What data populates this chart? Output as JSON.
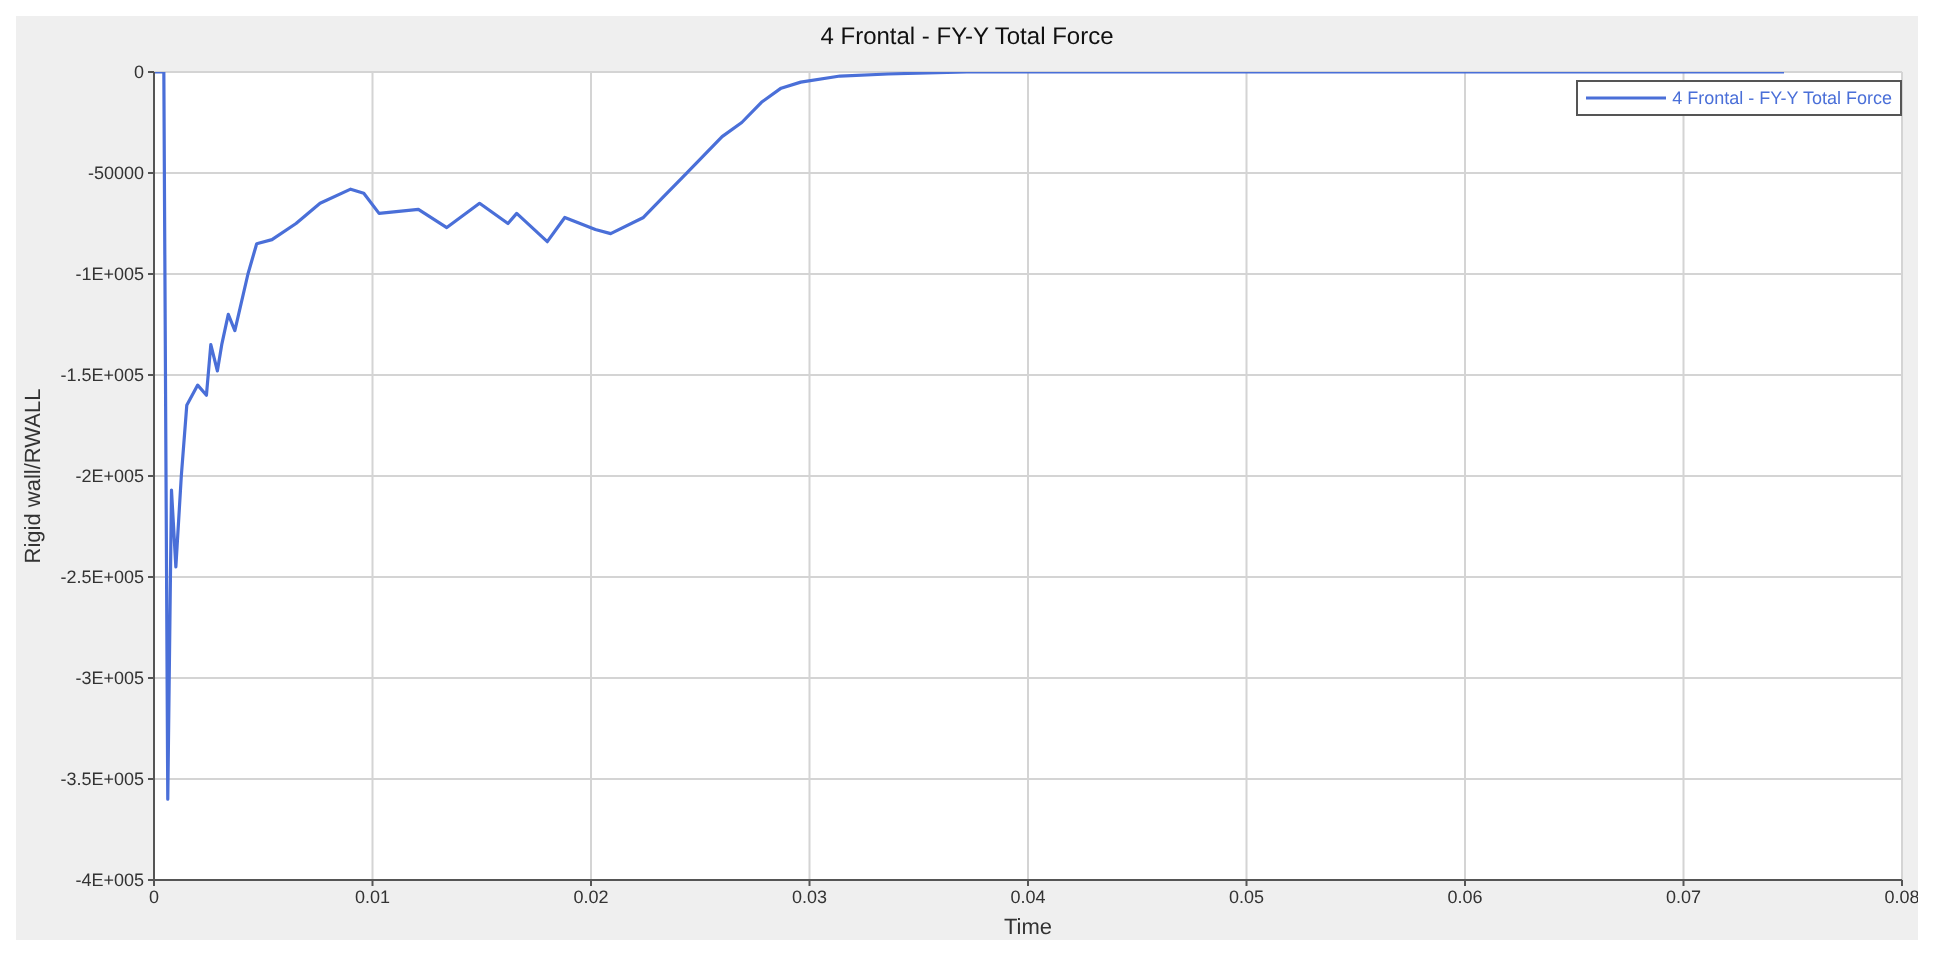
{
  "chart_data": {
    "type": "line",
    "title": "4 Frontal - FY-Y Total Force",
    "xlabel": "Time",
    "ylabel": "Rigid wall/RWALL",
    "xlim": [
      0,
      0.08
    ],
    "xticks": [
      0,
      0.01,
      0.02,
      0.03,
      0.04,
      0.05,
      0.06,
      0.07,
      0.08
    ],
    "ylim": [
      -400000,
      0
    ],
    "yticks": [
      {
        "value": -400000,
        "label": "-4E+005"
      },
      {
        "value": -350000,
        "label": "-3.5E+005"
      },
      {
        "value": -300000,
        "label": "-3E+005"
      },
      {
        "value": -250000,
        "label": "-2.5E+005"
      },
      {
        "value": -200000,
        "label": "-2E+005"
      },
      {
        "value": -150000,
        "label": "-1.5E+005"
      },
      {
        "value": -100000,
        "label": "-1E+005"
      },
      {
        "value": -50000,
        "label": "-50000"
      },
      {
        "value": 0,
        "label": "0"
      }
    ],
    "grid": true,
    "legend": "top right",
    "marker": "none",
    "line_style": "solid",
    "series": [
      {
        "name": "4 Frontal - FY-Y Total Force",
        "color": "#4a6fd8",
        "x": [
          0,
          0.00045,
          0.00063,
          0.0008,
          0.001,
          0.00125,
          0.0015,
          0.002,
          0.0024,
          0.0026,
          0.0029,
          0.0031,
          0.0034,
          0.0037,
          0.0043,
          0.0047,
          0.0054,
          0.0065,
          0.0076,
          0.009,
          0.0096,
          0.0103,
          0.0121,
          0.0134,
          0.0149,
          0.0162,
          0.0166,
          0.018,
          0.0188,
          0.0202,
          0.0209,
          0.0224,
          0.0233,
          0.0242,
          0.0251,
          0.026,
          0.0269,
          0.0278,
          0.0287,
          0.0296,
          0.0314,
          0.0336,
          0.0372,
          0.0746
        ],
        "values": [
          0,
          0,
          -360000,
          -207000,
          -245000,
          -200000,
          -165000,
          -155000,
          -160000,
          -135000,
          -148000,
          -135000,
          -120000,
          -128000,
          -100000,
          -85000,
          -83000,
          -75000,
          -65000,
          -58000,
          -60000,
          -70000,
          -68000,
          -77000,
          -65000,
          -75000,
          -70000,
          -84000,
          -72000,
          -78000,
          -80000,
          -72000,
          -62000,
          -52000,
          -42000,
          -32000,
          -25000,
          -15000,
          -8000,
          -5000,
          -2000,
          -1000,
          0,
          0
        ]
      }
    ]
  }
}
